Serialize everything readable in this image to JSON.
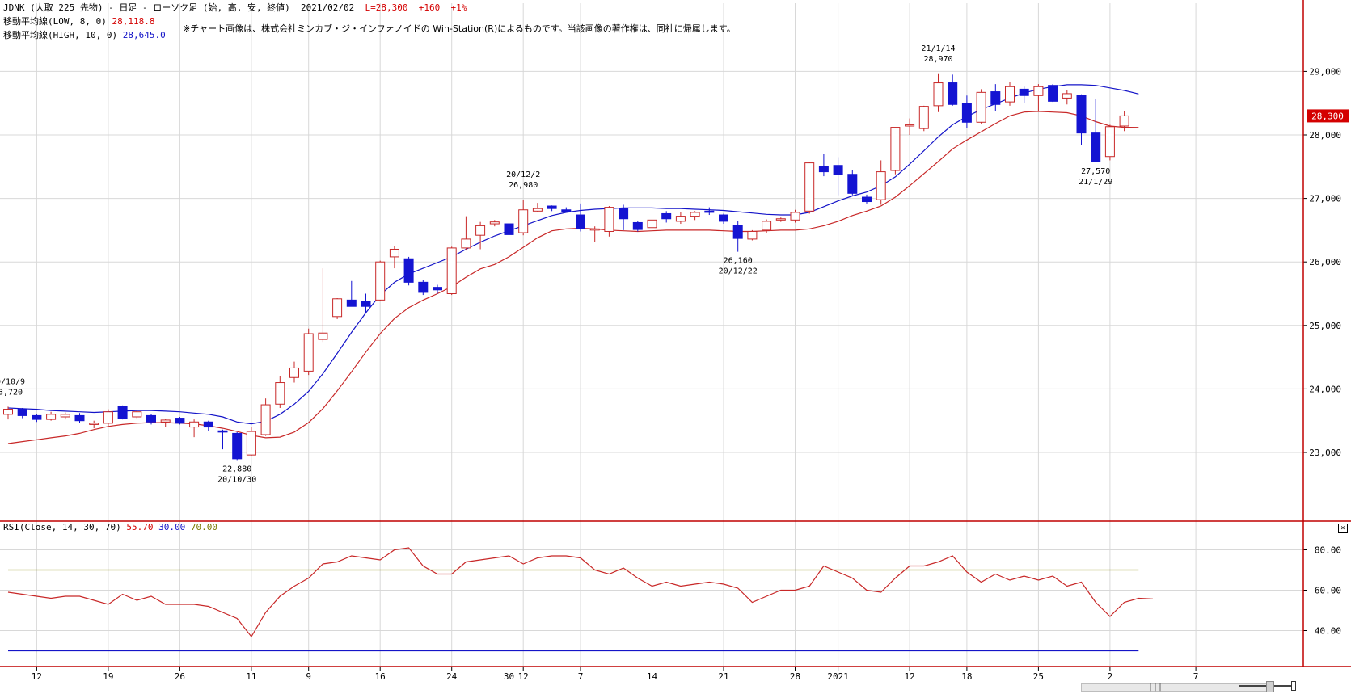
{
  "header": {
    "title_line": "JDNK (大取 225 先物) - 日足 - ローソク足 (始, 高, 安, 終値)  2021/02/02",
    "last_price": "L=28,300  +160  +1%",
    "ma_low_label": "移動平均線(LOW, 8, 0)",
    "ma_low_value": "28,118.8",
    "ma_high_label": "移動平均線(HIGH, 10, 0)",
    "ma_high_value": "28,645.0",
    "notice": "※チャート画像は、株式会社ミンカブ・ジ・インフォノイドの Win-Station(R)によるものです。当該画像の著作権は、同社に帰属します。"
  },
  "rsi_header": {
    "label": "RSI(Close, 14, 30, 70)",
    "value": "55.70",
    "lower": "30.00",
    "upper": "70.00"
  },
  "colors": {
    "up": "#c82828",
    "down": "#1414d2",
    "ma_low": "#c82828",
    "ma_high": "#1414c8",
    "rsi_line": "#c82828",
    "rsi_upper": "#8a8a00",
    "rsi_lower": "#1414c8",
    "grid": "#d8d8d8",
    "axis": "#c00000",
    "price_tag_bg": "#d40000"
  },
  "chart_data": {
    "type": "candlestick",
    "price_axis": {
      "ticks": [
        23000,
        24000,
        25000,
        26000,
        27000,
        28000,
        29000
      ],
      "tick_labels": [
        "23,000",
        "24,000",
        "25,000",
        "26,000",
        "27,000",
        "28,000",
        "29,000"
      ]
    },
    "rsi_axis": {
      "ylim": [
        30,
        85
      ],
      "ticks": [
        40,
        60,
        80
      ],
      "tick_labels": [
        "40.00",
        "60.00",
        "80.00"
      ],
      "upper": 70,
      "lower": 30
    },
    "last_price_tag": "28,300",
    "x_tick_labels": [
      {
        "i": 2,
        "label": "12"
      },
      {
        "i": 7,
        "label": "19"
      },
      {
        "i": 12,
        "label": "26"
      },
      {
        "i": 17,
        "label": "11"
      },
      {
        "i": 21,
        "label": "9"
      },
      {
        "i": 26,
        "label": "16"
      },
      {
        "i": 31,
        "label": "24"
      },
      {
        "i": 35,
        "label": "30"
      },
      {
        "i": 36,
        "label": "12"
      },
      {
        "i": 40,
        "label": "7"
      },
      {
        "i": 45,
        "label": "14"
      },
      {
        "i": 50,
        "label": "21"
      },
      {
        "i": 55,
        "label": "28"
      },
      {
        "i": 58,
        "label": "2021"
      },
      {
        "i": 63,
        "label": "12"
      },
      {
        "i": 67,
        "label": "18"
      },
      {
        "i": 72,
        "label": "25"
      },
      {
        "i": 77,
        "label": "2"
      },
      {
        "i": 83,
        "label": "7"
      }
    ],
    "candles": [
      {
        "o": 23600,
        "h": 23720,
        "l": 23520,
        "c": 23680
      },
      {
        "o": 23680,
        "h": 23700,
        "l": 23540,
        "c": 23580
      },
      {
        "o": 23580,
        "h": 23600,
        "l": 23480,
        "c": 23520
      },
      {
        "o": 23520,
        "h": 23640,
        "l": 23500,
        "c": 23600
      },
      {
        "o": 23560,
        "h": 23630,
        "l": 23520,
        "c": 23600
      },
      {
        "o": 23580,
        "h": 23620,
        "l": 23460,
        "c": 23500
      },
      {
        "o": 23440,
        "h": 23500,
        "l": 23380,
        "c": 23460
      },
      {
        "o": 23460,
        "h": 23680,
        "l": 23420,
        "c": 23640
      },
      {
        "o": 23720,
        "h": 23740,
        "l": 23520,
        "c": 23540
      },
      {
        "o": 23560,
        "h": 23660,
        "l": 23540,
        "c": 23640
      },
      {
        "o": 23580,
        "h": 23600,
        "l": 23440,
        "c": 23480
      },
      {
        "o": 23480,
        "h": 23530,
        "l": 23400,
        "c": 23510
      },
      {
        "o": 23540,
        "h": 23560,
        "l": 23440,
        "c": 23460
      },
      {
        "o": 23400,
        "h": 23520,
        "l": 23240,
        "c": 23480
      },
      {
        "o": 23480,
        "h": 23500,
        "l": 23340,
        "c": 23400
      },
      {
        "o": 23340,
        "h": 23360,
        "l": 23050,
        "c": 23320
      },
      {
        "o": 23300,
        "h": 23320,
        "l": 22880,
        "c": 22900
      },
      {
        "o": 22960,
        "h": 23400,
        "l": 22940,
        "c": 23330
      },
      {
        "o": 23280,
        "h": 23850,
        "l": 23260,
        "c": 23750
      },
      {
        "o": 23760,
        "h": 24200,
        "l": 23700,
        "c": 24100
      },
      {
        "o": 24180,
        "h": 24430,
        "l": 24100,
        "c": 24330
      },
      {
        "o": 24280,
        "h": 24950,
        "l": 24220,
        "c": 24870
      },
      {
        "o": 24780,
        "h": 25900,
        "l": 24740,
        "c": 24880
      },
      {
        "o": 25140,
        "h": 25430,
        "l": 25100,
        "c": 25420
      },
      {
        "o": 25400,
        "h": 25700,
        "l": 25300,
        "c": 25300
      },
      {
        "o": 25380,
        "h": 25500,
        "l": 25200,
        "c": 25300
      },
      {
        "o": 25400,
        "h": 26020,
        "l": 25380,
        "c": 26000
      },
      {
        "o": 26080,
        "h": 26250,
        "l": 25900,
        "c": 26200
      },
      {
        "o": 26050,
        "h": 26080,
        "l": 25630,
        "c": 25680
      },
      {
        "o": 25680,
        "h": 25720,
        "l": 25480,
        "c": 25520
      },
      {
        "o": 25600,
        "h": 25640,
        "l": 25500,
        "c": 25560
      },
      {
        "o": 25500,
        "h": 26240,
        "l": 25480,
        "c": 26220
      },
      {
        "o": 26220,
        "h": 26720,
        "l": 26180,
        "c": 26360
      },
      {
        "o": 26420,
        "h": 26630,
        "l": 26200,
        "c": 26570
      },
      {
        "o": 26600,
        "h": 26660,
        "l": 26560,
        "c": 26630
      },
      {
        "o": 26600,
        "h": 26900,
        "l": 26400,
        "c": 26430
      },
      {
        "o": 26460,
        "h": 26980,
        "l": 26420,
        "c": 26820
      },
      {
        "o": 26800,
        "h": 26930,
        "l": 26780,
        "c": 26840
      },
      {
        "o": 26880,
        "h": 26890,
        "l": 26800,
        "c": 26840
      },
      {
        "o": 26820,
        "h": 26860,
        "l": 26780,
        "c": 26790
      },
      {
        "o": 26740,
        "h": 26920,
        "l": 26480,
        "c": 26520
      },
      {
        "o": 26520,
        "h": 26560,
        "l": 26320,
        "c": 26520
      },
      {
        "o": 26480,
        "h": 26880,
        "l": 26400,
        "c": 26860
      },
      {
        "o": 26840,
        "h": 26900,
        "l": 26500,
        "c": 26680
      },
      {
        "o": 26620,
        "h": 26640,
        "l": 26480,
        "c": 26510
      },
      {
        "o": 26540,
        "h": 26860,
        "l": 26520,
        "c": 26660
      },
      {
        "o": 26760,
        "h": 26800,
        "l": 26620,
        "c": 26680
      },
      {
        "o": 26640,
        "h": 26780,
        "l": 26600,
        "c": 26720
      },
      {
        "o": 26720,
        "h": 26800,
        "l": 26660,
        "c": 26780
      },
      {
        "o": 26800,
        "h": 26860,
        "l": 26740,
        "c": 26780
      },
      {
        "o": 26740,
        "h": 26760,
        "l": 26600,
        "c": 26640
      },
      {
        "o": 26580,
        "h": 26640,
        "l": 26160,
        "c": 26370
      },
      {
        "o": 26360,
        "h": 26500,
        "l": 26340,
        "c": 26480
      },
      {
        "o": 26500,
        "h": 26670,
        "l": 26460,
        "c": 26640
      },
      {
        "o": 26660,
        "h": 26700,
        "l": 26630,
        "c": 26680
      },
      {
        "o": 26660,
        "h": 26820,
        "l": 26620,
        "c": 26780
      },
      {
        "o": 26800,
        "h": 27580,
        "l": 26760,
        "c": 27560
      },
      {
        "o": 27500,
        "h": 27700,
        "l": 27350,
        "c": 27420
      },
      {
        "o": 27520,
        "h": 27650,
        "l": 27050,
        "c": 27380
      },
      {
        "o": 27380,
        "h": 27450,
        "l": 27050,
        "c": 27080
      },
      {
        "o": 27020,
        "h": 27060,
        "l": 26920,
        "c": 26950
      },
      {
        "o": 26980,
        "h": 27600,
        "l": 26900,
        "c": 27420
      },
      {
        "o": 27440,
        "h": 28120,
        "l": 27380,
        "c": 28120
      },
      {
        "o": 28140,
        "h": 28260,
        "l": 28000,
        "c": 28160
      },
      {
        "o": 28100,
        "h": 28460,
        "l": 28060,
        "c": 28450
      },
      {
        "o": 28460,
        "h": 28970,
        "l": 28360,
        "c": 28820
      },
      {
        "o": 28820,
        "h": 28950,
        "l": 28460,
        "c": 28480
      },
      {
        "o": 28490,
        "h": 28620,
        "l": 28110,
        "c": 28200
      },
      {
        "o": 28200,
        "h": 28720,
        "l": 28180,
        "c": 28670
      },
      {
        "o": 28680,
        "h": 28800,
        "l": 28380,
        "c": 28480
      },
      {
        "o": 28520,
        "h": 28840,
        "l": 28460,
        "c": 28760
      },
      {
        "o": 28720,
        "h": 28760,
        "l": 28500,
        "c": 28620
      },
      {
        "o": 28620,
        "h": 28800,
        "l": 28380,
        "c": 28760
      },
      {
        "o": 28780,
        "h": 28800,
        "l": 28520,
        "c": 28530
      },
      {
        "o": 28580,
        "h": 28700,
        "l": 28480,
        "c": 28650
      },
      {
        "o": 28620,
        "h": 28640,
        "l": 27840,
        "c": 28030
      },
      {
        "o": 28030,
        "h": 28560,
        "l": 27570,
        "c": 27580
      },
      {
        "o": 27660,
        "h": 28160,
        "l": 27600,
        "c": 28130
      },
      {
        "o": 28140,
        "h": 28380,
        "l": 28060,
        "c": 28300
      }
    ],
    "ma_high": [
      23700,
      23690,
      23680,
      23660,
      23650,
      23640,
      23630,
      23640,
      23650,
      23660,
      23660,
      23650,
      23640,
      23620,
      23600,
      23560,
      23480,
      23450,
      23490,
      23600,
      23760,
      23960,
      24240,
      24560,
      24890,
      25200,
      25480,
      25680,
      25810,
      25900,
      25990,
      26080,
      26200,
      26310,
      26410,
      26490,
      26570,
      26650,
      26730,
      26780,
      26810,
      26830,
      26840,
      26850,
      26850,
      26850,
      26840,
      26840,
      26830,
      26820,
      26810,
      26790,
      26770,
      26750,
      26740,
      26740,
      26780,
      26870,
      26960,
      27040,
      27100,
      27200,
      27340,
      27540,
      27750,
      27970,
      28160,
      28290,
      28400,
      28490,
      28580,
      28660,
      28720,
      28760,
      28790,
      28790,
      28780,
      28740,
      28700,
      28645
    ],
    "ma_low": [
      23140,
      23170,
      23200,
      23230,
      23260,
      23300,
      23360,
      23410,
      23440,
      23460,
      23470,
      23470,
      23460,
      23450,
      23420,
      23380,
      23330,
      23270,
      23230,
      23240,
      23320,
      23470,
      23690,
      23970,
      24270,
      24580,
      24870,
      25110,
      25280,
      25400,
      25500,
      25610,
      25760,
      25890,
      25960,
      26080,
      26230,
      26380,
      26490,
      26520,
      26530,
      26520,
      26500,
      26490,
      26480,
      26490,
      26500,
      26500,
      26500,
      26500,
      26490,
      26480,
      26480,
      26490,
      26500,
      26500,
      26520,
      26570,
      26640,
      26730,
      26800,
      26880,
      27020,
      27200,
      27390,
      27580,
      27780,
      27920,
      28050,
      28180,
      28300,
      28360,
      28370,
      28360,
      28350,
      28300,
      28210,
      28140,
      28120,
      28118.8
    ],
    "rsi": [
      59,
      58,
      57,
      56,
      57,
      57,
      55,
      53,
      58,
      55,
      57,
      53,
      53,
      53,
      52,
      49,
      46,
      37,
      49,
      57,
      62,
      66,
      73,
      74,
      77,
      76,
      75,
      80,
      81,
      72,
      68,
      68,
      74,
      75,
      76,
      77,
      73,
      76,
      77,
      77,
      76,
      70,
      68,
      71,
      66,
      62,
      64,
      62,
      63,
      64,
      63,
      61,
      54,
      57,
      60,
      60,
      62,
      72,
      69,
      66,
      60,
      59,
      66,
      72,
      72,
      74,
      77,
      69,
      64,
      68,
      65,
      67,
      65,
      67,
      62,
      64,
      54,
      47,
      54,
      56,
      55.7
    ]
  },
  "scrollbar": {
    "grip": "|||"
  }
}
